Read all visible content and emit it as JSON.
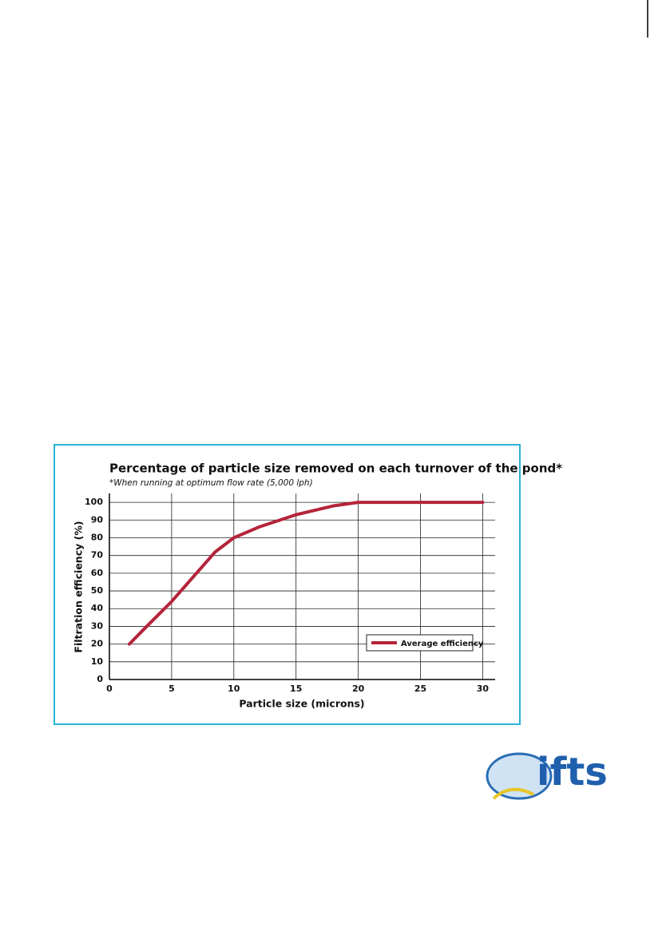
{
  "chart_data": {
    "type": "line",
    "title": "Percentage of particle size removed on each turnover of the pond*",
    "subtitle": "*When running at optimum flow rate (5,000 lph)",
    "x_label": "Particle size (microns)",
    "y_label": "Filtration efficiency (%)",
    "x": [
      1.6,
      3,
      5,
      7,
      8.5,
      10,
      12,
      15,
      18,
      20,
      22,
      25,
      30
    ],
    "series": [
      {
        "name": "Average efficiency",
        "color": "#b5243a",
        "values": [
          20,
          30,
          44,
          60,
          72,
          80,
          86,
          93,
          98,
          100,
          100,
          100,
          100
        ]
      }
    ],
    "xlim": [
      0,
      31
    ],
    "ylim": [
      0,
      105
    ],
    "xticks": [
      0,
      5,
      10,
      15,
      20,
      25,
      30
    ],
    "yticks": [
      0,
      10,
      20,
      30,
      40,
      50,
      60,
      70,
      80,
      90,
      100
    ],
    "grid": true,
    "legend": "lower right"
  },
  "logo": {
    "text": "ifts"
  }
}
